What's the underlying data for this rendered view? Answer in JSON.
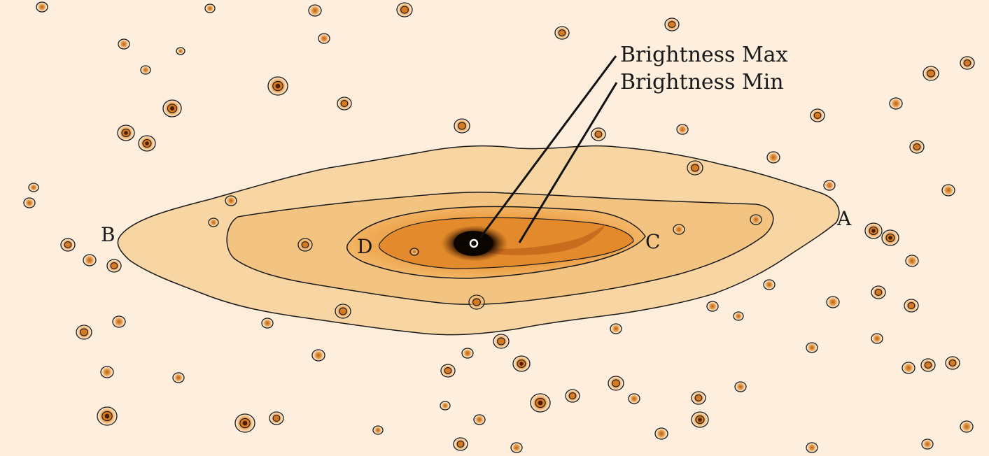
{
  "image": {
    "annotations": {
      "brightness_max": "Brightness Max",
      "brightness_min": "Brightness Min"
    },
    "points": {
      "a": "A",
      "b": "B",
      "c": "C",
      "d": "D"
    },
    "colors": {
      "background": "#fdeedd",
      "halo": "#f7d9ab",
      "disk": "#f2c07b",
      "inner": "#eb9a3c",
      "core": "#d9731e",
      "nucleus": "#111111",
      "contour": "#1a1a1a"
    }
  }
}
